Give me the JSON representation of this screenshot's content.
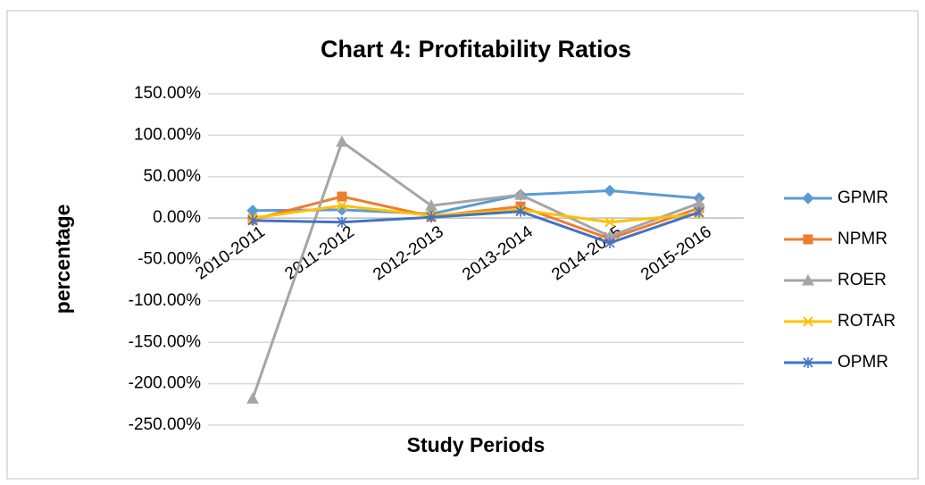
{
  "chart_data": {
    "type": "line",
    "title": "Chart 4: Profitability Ratios",
    "x_label": "Study Periods",
    "y_label": "percentage",
    "categories": [
      "2010-2011",
      "2011-2012",
      "2012-2013",
      "2013-2014",
      "2014-2015",
      "2015-2016"
    ],
    "series": [
      {
        "name": "GPMR",
        "color": "#5b9bd5",
        "values": [
          9,
          10,
          5,
          28,
          33,
          24
        ]
      },
      {
        "name": "NPMR",
        "color": "#ed7d31",
        "values": [
          -2,
          26,
          2,
          14,
          -25,
          12
        ]
      },
      {
        "name": "ROER",
        "color": "#a5a5a5",
        "values": [
          -218,
          92,
          15,
          28,
          -22,
          18
        ]
      },
      {
        "name": "ROTAR",
        "color": "#ffc000",
        "values": [
          0,
          15,
          3,
          10,
          -5,
          5
        ]
      },
      {
        "name": "OPMR",
        "color": "#4472c4",
        "values": [
          -3,
          -5,
          1,
          8,
          -30,
          7
        ]
      }
    ],
    "ylim": [
      -250,
      150
    ],
    "yticks": [
      {
        "value": -250,
        "label": "-250.00%"
      },
      {
        "value": -200,
        "label": "-200.00%"
      },
      {
        "value": -150,
        "label": "-150.00%"
      },
      {
        "value": -100,
        "label": "-100.00%"
      },
      {
        "value": -50,
        "label": "-50.00%"
      },
      {
        "value": 0,
        "label": "0.00%"
      },
      {
        "value": 50,
        "label": "50.00%"
      },
      {
        "value": 100,
        "label": "100.00%"
      },
      {
        "value": 150,
        "label": "150.00%"
      }
    ],
    "grid": true,
    "legend": "right"
  }
}
